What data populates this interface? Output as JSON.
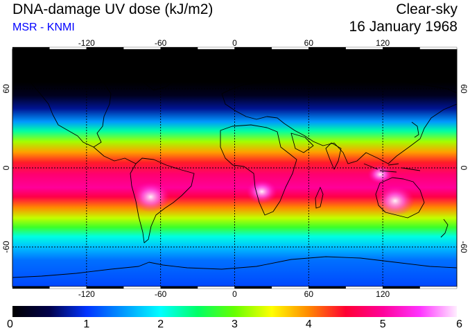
{
  "header": {
    "title": "DNA-damage UV dose (kJ/m2)",
    "subtitle": "MSR - KNMI",
    "condition": "Clear-sky",
    "date": "16 January 1968"
  },
  "map": {
    "projection": "equirectangular",
    "lon_range": [
      -180,
      180
    ],
    "lat_range": [
      -90,
      90
    ],
    "lon_ticks": [
      -120,
      -60,
      0,
      60,
      120
    ],
    "lat_ticks": [
      60,
      0,
      -60
    ],
    "lon_tick_labels": [
      "-120",
      "-60",
      "0",
      "60",
      "120"
    ],
    "lat_tick_labels": [
      "60",
      "0",
      "-60"
    ],
    "grid_lines": "dashed",
    "dose_profile_by_latitude": [
      {
        "lat": 90,
        "dose": 0.0
      },
      {
        "lat": 65,
        "dose": 0.0
      },
      {
        "lat": 55,
        "dose": 0.2
      },
      {
        "lat": 45,
        "dose": 0.7
      },
      {
        "lat": 35,
        "dose": 1.5
      },
      {
        "lat": 28,
        "dose": 2.3
      },
      {
        "lat": 20,
        "dose": 3.2
      },
      {
        "lat": 12,
        "dose": 3.9
      },
      {
        "lat": 4,
        "dose": 4.4
      },
      {
        "lat": -5,
        "dose": 4.8
      },
      {
        "lat": -15,
        "dose": 5.0
      },
      {
        "lat": -22,
        "dose": 4.6
      },
      {
        "lat": -30,
        "dose": 4.0
      },
      {
        "lat": -38,
        "dose": 3.3
      },
      {
        "lat": -45,
        "dose": 2.8
      },
      {
        "lat": -52,
        "dose": 2.1
      },
      {
        "lat": -60,
        "dose": 1.7
      },
      {
        "lat": -70,
        "dose": 1.3
      },
      {
        "lat": -80,
        "dose": 1.2
      },
      {
        "lat": -90,
        "dose": 1.1
      }
    ],
    "hotspots": [
      {
        "name": "South America",
        "lon": -68,
        "lat": -22,
        "dose": 6.0
      },
      {
        "name": "Australia",
        "lon": 130,
        "lat": -25,
        "dose": 6.0
      },
      {
        "name": "Southern Africa",
        "lon": 22,
        "lat": -18,
        "dose": 5.6
      },
      {
        "name": "Indonesia",
        "lon": 118,
        "lat": -5,
        "dose": 5.3
      }
    ],
    "coastline_color": "#000000"
  },
  "colorbar": {
    "min": 0,
    "max": 6,
    "tick_labels": [
      "0",
      "1",
      "2",
      "3",
      "4",
      "5",
      "6"
    ],
    "stops": [
      {
        "value": 0.0,
        "color": "#000000"
      },
      {
        "value": 0.5,
        "color": "#00004a"
      },
      {
        "value": 1.0,
        "color": "#0033ff"
      },
      {
        "value": 1.5,
        "color": "#0099ff"
      },
      {
        "value": 2.0,
        "color": "#00ffff"
      },
      {
        "value": 2.5,
        "color": "#00ff66"
      },
      {
        "value": 3.0,
        "color": "#66ff00"
      },
      {
        "value": 3.5,
        "color": "#ffff00"
      },
      {
        "value": 4.0,
        "color": "#ff8800"
      },
      {
        "value": 4.5,
        "color": "#ff0033"
      },
      {
        "value": 5.0,
        "color": "#ff0099"
      },
      {
        "value": 5.5,
        "color": "#ff33ff"
      },
      {
        "value": 6.0,
        "color": "#ffeeff"
      }
    ]
  }
}
